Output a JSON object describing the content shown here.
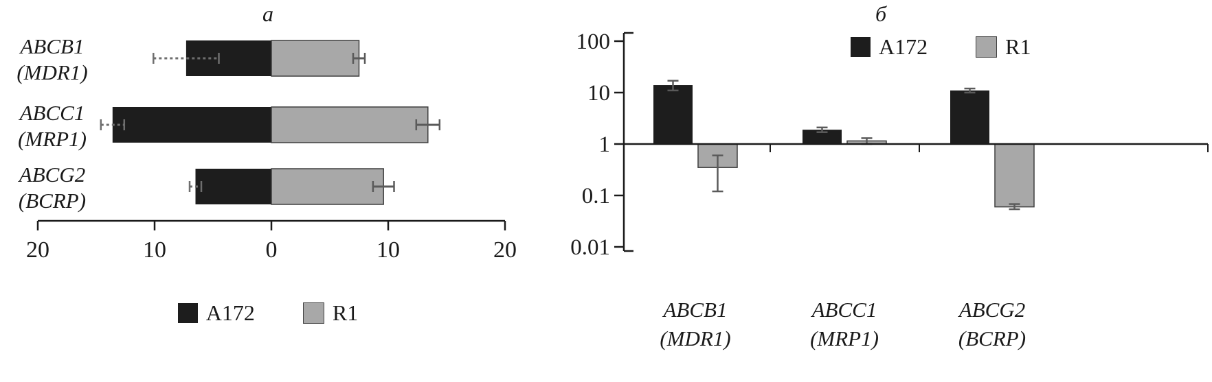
{
  "figure": {
    "background": "#ffffff"
  },
  "colors": {
    "a172": "#1d1d1d",
    "r1": "#a8a8a8",
    "axis": "#1a1a1a",
    "error": "#5a5a5a",
    "error_dashed": "#6e6e6e"
  },
  "chart_data": [
    {
      "type": "bar",
      "variant": "horizontal-diverging",
      "panel_label": "а",
      "categories": [
        {
          "gene": "ABCB1",
          "alias": "(MDR1)"
        },
        {
          "gene": "ABCC1",
          "alias": "(MRP1)"
        },
        {
          "gene": "ABCG2",
          "alias": "(BCRP)"
        }
      ],
      "series": [
        {
          "name": "A172",
          "side": "left",
          "values": [
            7.3,
            13.6,
            6.5
          ],
          "errors": [
            2.8,
            1.0,
            0.5
          ]
        },
        {
          "name": "R1",
          "side": "right",
          "values": [
            7.5,
            13.4,
            9.6
          ],
          "errors": [
            0.5,
            1.0,
            0.9
          ]
        }
      ],
      "xlim": [
        -20,
        20
      ],
      "x_ticks": [
        20,
        10,
        0,
        10,
        20
      ],
      "grid": false,
      "legend_position": "bottom"
    },
    {
      "type": "bar",
      "variant": "vertical-grouped",
      "panel_label": "б",
      "categories": [
        {
          "gene": "ABCB1",
          "alias": "(MDR1)"
        },
        {
          "gene": "ABCC1",
          "alias": "(MRP1)"
        },
        {
          "gene": "ABCG2",
          "alias": "(BCRP)"
        }
      ],
      "series": [
        {
          "name": "A172",
          "values": [
            14,
            1.9,
            11
          ],
          "error_lo": [
            11,
            1.7,
            10
          ],
          "error_hi": [
            17,
            2.1,
            12
          ]
        },
        {
          "name": "R1",
          "values": [
            0.35,
            1.15,
            0.06
          ],
          "error_lo": [
            0.12,
            1.0,
            0.054
          ],
          "error_hi": [
            0.6,
            1.3,
            0.068
          ]
        }
      ],
      "yscale": "log",
      "ylim": [
        0.01,
        100
      ],
      "y_ticks": [
        100,
        10,
        1,
        0.1,
        0.01
      ],
      "baseline": 1,
      "grid": false,
      "legend_position": "top-right"
    }
  ]
}
